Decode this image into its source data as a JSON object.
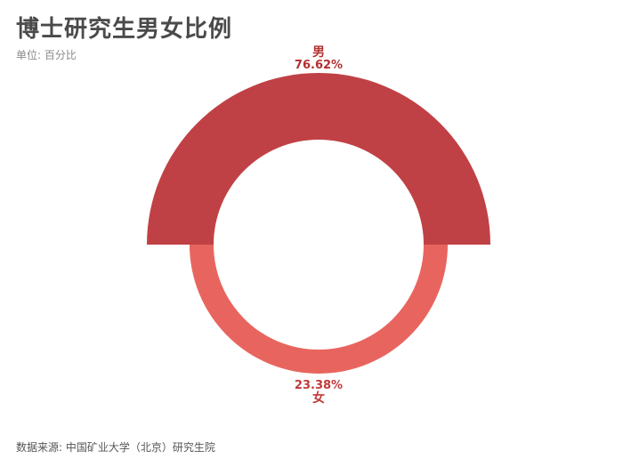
{
  "title": "博士研究生男女比例",
  "subtitle": "单位: 百分比",
  "source": "数据来源: 中国矿业大学（北京）研究生院",
  "colors": {
    "male": "#c04145",
    "female": "#e8655f",
    "label_male": "#b3302f",
    "label_female": "#c03a38"
  },
  "chart_data": {
    "type": "pie",
    "variant": "half-donut-comparison",
    "categories": [
      "男",
      "女"
    ],
    "values": [
      76.62,
      23.38
    ],
    "value_labels": [
      "76.62%",
      "23.38%"
    ]
  }
}
